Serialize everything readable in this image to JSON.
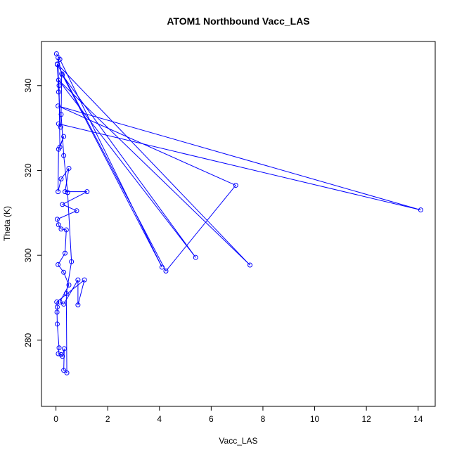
{
  "chart_data": {
    "type": "line",
    "title": "ATOM1 Northbound Vacc_LAS",
    "xlabel": "Vacc_LAS",
    "ylabel": "Theta (K)",
    "xlim": [
      -0.56,
      14.66
    ],
    "ylim": [
      264.4,
      350.4
    ],
    "xticks": [
      0,
      2,
      4,
      6,
      8,
      10,
      12,
      14
    ],
    "yticks": [
      280,
      300,
      320,
      340
    ],
    "grid": false,
    "legend": "none",
    "series_color": "#0000ff",
    "marker": "open-circle",
    "series": [
      {
        "points": [
          [
            0.02,
            347.5
          ],
          [
            0.15,
            346.2
          ],
          [
            4.1,
            297.2
          ],
          [
            0.25,
            342.5
          ],
          [
            5.4,
            299.5
          ],
          [
            0.1,
            341.3
          ],
          [
            7.5,
            297.7
          ],
          [
            0.05,
            345.1
          ],
          [
            4.25,
            296.3
          ],
          [
            6.95,
            316.5
          ],
          [
            0.08,
            335.2
          ],
          [
            14.1,
            310.7
          ],
          [
            0.1,
            331.0
          ],
          [
            0.18,
            330.2
          ],
          [
            0.05,
            345.0
          ],
          [
            0.12,
            340.0
          ],
          [
            0.15,
            325.5
          ],
          [
            0.3,
            328.0
          ],
          [
            0.1,
            325.0
          ],
          [
            0.08,
            315.0
          ],
          [
            0.2,
            318.0
          ],
          [
            0.5,
            320.5
          ],
          [
            0.35,
            315.0
          ],
          [
            1.2,
            315.0
          ],
          [
            0.25,
            312.0
          ],
          [
            0.8,
            310.5
          ],
          [
            0.05,
            308.5
          ],
          [
            0.1,
            307.2
          ],
          [
            0.2,
            306.2
          ],
          [
            0.4,
            306.0
          ],
          [
            0.35,
            300.5
          ],
          [
            0.08,
            297.8
          ],
          [
            0.3,
            296.0
          ],
          [
            0.5,
            293.0
          ],
          [
            0.15,
            289.0
          ],
          [
            0.3,
            288.5
          ],
          [
            0.85,
            294.2
          ],
          [
            0.85,
            288.3
          ],
          [
            1.1,
            294.2
          ],
          [
            0.03,
            289.0
          ],
          [
            0.05,
            287.8
          ],
          [
            0.04,
            286.6
          ],
          [
            0.05,
            283.8
          ],
          [
            0.12,
            278.2
          ],
          [
            0.09,
            276.8
          ],
          [
            0.2,
            276.6
          ],
          [
            0.25,
            276.2
          ],
          [
            0.32,
            278.0
          ],
          [
            0.3,
            272.9
          ],
          [
            0.42,
            272.3
          ],
          [
            0.4,
            291.0
          ],
          [
            0.6,
            298.5
          ],
          [
            0.45,
            314.8
          ],
          [
            0.3,
            323.5
          ],
          [
            0.2,
            333.2
          ],
          [
            0.22,
            342.8
          ],
          [
            0.08,
            346.6
          ],
          [
            0.1,
            338.5
          ]
        ]
      }
    ]
  }
}
